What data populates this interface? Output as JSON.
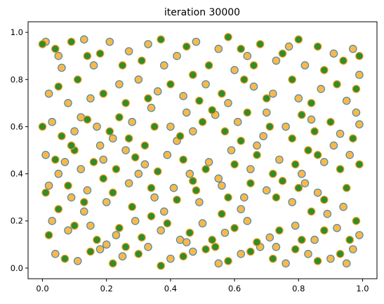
{
  "chart_data": {
    "type": "scatter",
    "title": "iteration 30000",
    "xlabel": "",
    "ylabel": "",
    "xlim": [
      -0.045,
      1.045
    ],
    "ylim": [
      -0.045,
      1.045
    ],
    "xticks": [
      "0.0",
      "0.2",
      "0.4",
      "0.6",
      "0.8",
      "1.0"
    ],
    "yticks": [
      "0.0",
      "0.2",
      "0.4",
      "0.6",
      "0.8",
      "1.0"
    ],
    "grid": false,
    "legend": null,
    "colors": {
      "orange_fill": "#f9b84a",
      "orange_edge": "#4f88a6",
      "green_fill": "#2f8d2c",
      "green_edge": "#f39a1c"
    },
    "series": [
      {
        "color": "orange",
        "points": [
          [
            0.01,
            0.96
          ],
          [
            0.06,
            0.85
          ],
          [
            0.13,
            0.97
          ],
          [
            0.21,
            0.96
          ],
          [
            0.27,
            0.92
          ],
          [
            0.33,
            0.95
          ],
          [
            0.42,
            0.9
          ],
          [
            0.48,
            0.96
          ],
          [
            0.55,
            0.93
          ],
          [
            0.64,
            0.9
          ],
          [
            0.73,
            0.88
          ],
          [
            0.82,
            0.86
          ],
          [
            0.91,
            0.91
          ],
          [
            0.97,
            0.93
          ],
          [
            0.02,
            0.74
          ],
          [
            0.08,
            0.7
          ],
          [
            0.15,
            0.72
          ],
          [
            0.24,
            0.78
          ],
          [
            0.3,
            0.8
          ],
          [
            0.36,
            0.75
          ],
          [
            0.44,
            0.73
          ],
          [
            0.51,
            0.78
          ],
          [
            0.58,
            0.7
          ],
          [
            0.66,
            0.77
          ],
          [
            0.72,
            0.74
          ],
          [
            0.8,
            0.72
          ],
          [
            0.87,
            0.76
          ],
          [
            0.95,
            0.71
          ],
          [
            0.03,
            0.62
          ],
          [
            0.1,
            0.58
          ],
          [
            0.17,
            0.6
          ],
          [
            0.22,
            0.55
          ],
          [
            0.28,
            0.62
          ],
          [
            0.34,
            0.68
          ],
          [
            0.4,
            0.6
          ],
          [
            0.47,
            0.58
          ],
          [
            0.54,
            0.65
          ],
          [
            0.61,
            0.62
          ],
          [
            0.69,
            0.56
          ],
          [
            0.76,
            0.6
          ],
          [
            0.84,
            0.63
          ],
          [
            0.93,
            0.57
          ],
          [
            0.99,
            0.61
          ],
          [
            0.01,
            0.48
          ],
          [
            0.07,
            0.45
          ],
          [
            0.12,
            0.42
          ],
          [
            0.19,
            0.46
          ],
          [
            0.26,
            0.5
          ],
          [
            0.32,
            0.44
          ],
          [
            0.39,
            0.48
          ],
          [
            0.46,
            0.4
          ],
          [
            0.52,
            0.45
          ],
          [
            0.59,
            0.5
          ],
          [
            0.65,
            0.42
          ],
          [
            0.74,
            0.46
          ],
          [
            0.81,
            0.4
          ],
          [
            0.88,
            0.45
          ],
          [
            0.96,
            0.48
          ],
          [
            0.02,
            0.35
          ],
          [
            0.09,
            0.3
          ],
          [
            0.14,
            0.33
          ],
          [
            0.2,
            0.28
          ],
          [
            0.27,
            0.36
          ],
          [
            0.35,
            0.3
          ],
          [
            0.41,
            0.34
          ],
          [
            0.49,
            0.28
          ],
          [
            0.56,
            0.35
          ],
          [
            0.63,
            0.3
          ],
          [
            0.7,
            0.33
          ],
          [
            0.78,
            0.28
          ],
          [
            0.86,
            0.32
          ],
          [
            0.94,
            0.26
          ],
          [
            0.03,
            0.2
          ],
          [
            0.08,
            0.16
          ],
          [
            0.15,
            0.18
          ],
          [
            0.23,
            0.14
          ],
          [
            0.29,
            0.2
          ],
          [
            0.37,
            0.16
          ],
          [
            0.43,
            0.12
          ],
          [
            0.5,
            0.19
          ],
          [
            0.57,
            0.15
          ],
          [
            0.64,
            0.2
          ],
          [
            0.71,
            0.13
          ],
          [
            0.79,
            0.18
          ],
          [
            0.85,
            0.12
          ],
          [
            0.92,
            0.17
          ],
          [
            0.99,
            0.14
          ],
          [
            0.04,
            0.06
          ],
          [
            0.11,
            0.03
          ],
          [
            0.18,
            0.08
          ],
          [
            0.25,
            0.05
          ],
          [
            0.33,
            0.09
          ],
          [
            0.4,
            0.04
          ],
          [
            0.47,
            0.07
          ],
          [
            0.55,
            0.02
          ],
          [
            0.62,
            0.06
          ],
          [
            0.68,
            0.09
          ],
          [
            0.76,
            0.02
          ],
          [
            0.83,
            0.06
          ],
          [
            0.9,
            0.04
          ],
          [
            0.97,
            0.08
          ],
          [
            0.05,
            0.9
          ],
          [
            0.16,
            0.86
          ],
          [
            0.38,
            0.86
          ],
          [
            0.6,
            0.84
          ],
          [
            0.77,
            0.94
          ],
          [
            0.99,
            0.82
          ],
          [
            0.12,
            0.64
          ],
          [
            0.45,
            0.66
          ],
          [
            0.7,
            0.66
          ],
          [
            0.98,
            0.66
          ],
          [
            0.18,
            0.52
          ],
          [
            0.42,
            0.54
          ],
          [
            0.67,
            0.52
          ],
          [
            0.91,
            0.52
          ],
          [
            0.05,
            0.4
          ],
          [
            0.3,
            0.4
          ],
          [
            0.55,
            0.38
          ],
          [
            0.82,
            0.36
          ],
          [
            0.13,
            0.24
          ],
          [
            0.38,
            0.24
          ],
          [
            0.62,
            0.25
          ],
          [
            0.89,
            0.23
          ],
          [
            0.2,
            0.1
          ],
          [
            0.45,
            0.11
          ],
          [
            0.73,
            0.09
          ],
          [
            0.95,
            0.02
          ]
        ]
      },
      {
        "color": "green",
        "points": [
          [
            0.0,
            0.95
          ],
          [
            0.04,
            0.93
          ],
          [
            0.09,
            0.96
          ],
          [
            0.18,
            0.91
          ],
          [
            0.25,
            0.86
          ],
          [
            0.31,
            0.88
          ],
          [
            0.37,
            0.97
          ],
          [
            0.45,
            0.94
          ],
          [
            0.52,
            0.86
          ],
          [
            0.58,
            0.98
          ],
          [
            0.62,
            0.93
          ],
          [
            0.68,
            0.95
          ],
          [
            0.75,
            0.91
          ],
          [
            0.8,
            0.97
          ],
          [
            0.86,
            0.94
          ],
          [
            0.94,
            0.88
          ],
          [
            0.99,
            0.9
          ],
          [
            0.05,
            0.77
          ],
          [
            0.11,
            0.8
          ],
          [
            0.19,
            0.74
          ],
          [
            0.26,
            0.7
          ],
          [
            0.33,
            0.72
          ],
          [
            0.4,
            0.78
          ],
          [
            0.49,
            0.71
          ],
          [
            0.56,
            0.74
          ],
          [
            0.63,
            0.8
          ],
          [
            0.7,
            0.72
          ],
          [
            0.78,
            0.8
          ],
          [
            0.84,
            0.7
          ],
          [
            0.92,
            0.78
          ],
          [
            0.98,
            0.76
          ],
          [
            0.0,
            0.6
          ],
          [
            0.06,
            0.56
          ],
          [
            0.14,
            0.63
          ],
          [
            0.21,
            0.58
          ],
          [
            0.27,
            0.55
          ],
          [
            0.35,
            0.6
          ],
          [
            0.43,
            0.56
          ],
          [
            0.5,
            0.62
          ],
          [
            0.57,
            0.58
          ],
          [
            0.64,
            0.66
          ],
          [
            0.71,
            0.6
          ],
          [
            0.78,
            0.55
          ],
          [
            0.85,
            0.58
          ],
          [
            0.9,
            0.62
          ],
          [
            0.97,
            0.55
          ],
          [
            0.04,
            0.46
          ],
          [
            0.1,
            0.5
          ],
          [
            0.16,
            0.45
          ],
          [
            0.23,
            0.42
          ],
          [
            0.29,
            0.47
          ],
          [
            0.36,
            0.41
          ],
          [
            0.44,
            0.46
          ],
          [
            0.51,
            0.42
          ],
          [
            0.6,
            0.44
          ],
          [
            0.67,
            0.48
          ],
          [
            0.72,
            0.4
          ],
          [
            0.79,
            0.44
          ],
          [
            0.86,
            0.48
          ],
          [
            0.93,
            0.42
          ],
          [
            0.99,
            0.44
          ],
          [
            0.01,
            0.32
          ],
          [
            0.08,
            0.35
          ],
          [
            0.13,
            0.28
          ],
          [
            0.22,
            0.32
          ],
          [
            0.28,
            0.26
          ],
          [
            0.34,
            0.34
          ],
          [
            0.42,
            0.29
          ],
          [
            0.48,
            0.33
          ],
          [
            0.58,
            0.3
          ],
          [
            0.65,
            0.36
          ],
          [
            0.73,
            0.3
          ],
          [
            0.8,
            0.34
          ],
          [
            0.88,
            0.29
          ],
          [
            0.95,
            0.34
          ],
          [
            0.02,
            0.14
          ],
          [
            0.1,
            0.18
          ],
          [
            0.17,
            0.12
          ],
          [
            0.24,
            0.17
          ],
          [
            0.31,
            0.13
          ],
          [
            0.39,
            0.19
          ],
          [
            0.46,
            0.15
          ],
          [
            0.53,
            0.12
          ],
          [
            0.6,
            0.17
          ],
          [
            0.67,
            0.11
          ],
          [
            0.74,
            0.16
          ],
          [
            0.81,
            0.12
          ],
          [
            0.88,
            0.16
          ],
          [
            0.96,
            0.12
          ],
          [
            0.07,
            0.04
          ],
          [
            0.15,
            0.07
          ],
          [
            0.22,
            0.02
          ],
          [
            0.3,
            0.06
          ],
          [
            0.37,
            0.01
          ],
          [
            0.44,
            0.05
          ],
          [
            0.51,
            0.08
          ],
          [
            0.58,
            0.03
          ],
          [
            0.65,
            0.07
          ],
          [
            0.72,
            0.04
          ],
          [
            0.79,
            0.08
          ],
          [
            0.86,
            0.03
          ],
          [
            0.93,
            0.06
          ],
          [
            0.14,
            0.9
          ],
          [
            0.47,
            0.82
          ],
          [
            0.66,
            0.86
          ],
          [
            0.88,
            0.84
          ],
          [
            0.24,
            0.64
          ],
          [
            0.53,
            0.67
          ],
          [
            0.81,
            0.65
          ],
          [
            0.09,
            0.52
          ],
          [
            0.32,
            0.52
          ],
          [
            0.62,
            0.54
          ],
          [
            0.83,
            0.5
          ],
          [
            0.19,
            0.38
          ],
          [
            0.47,
            0.37
          ],
          [
            0.75,
            0.37
          ],
          [
            0.05,
            0.25
          ],
          [
            0.34,
            0.22
          ],
          [
            0.56,
            0.23
          ],
          [
            0.84,
            0.24
          ],
          [
            0.26,
            0.09
          ],
          [
            0.54,
            0.09
          ],
          [
            0.98,
            0.2
          ]
        ]
      }
    ]
  }
}
